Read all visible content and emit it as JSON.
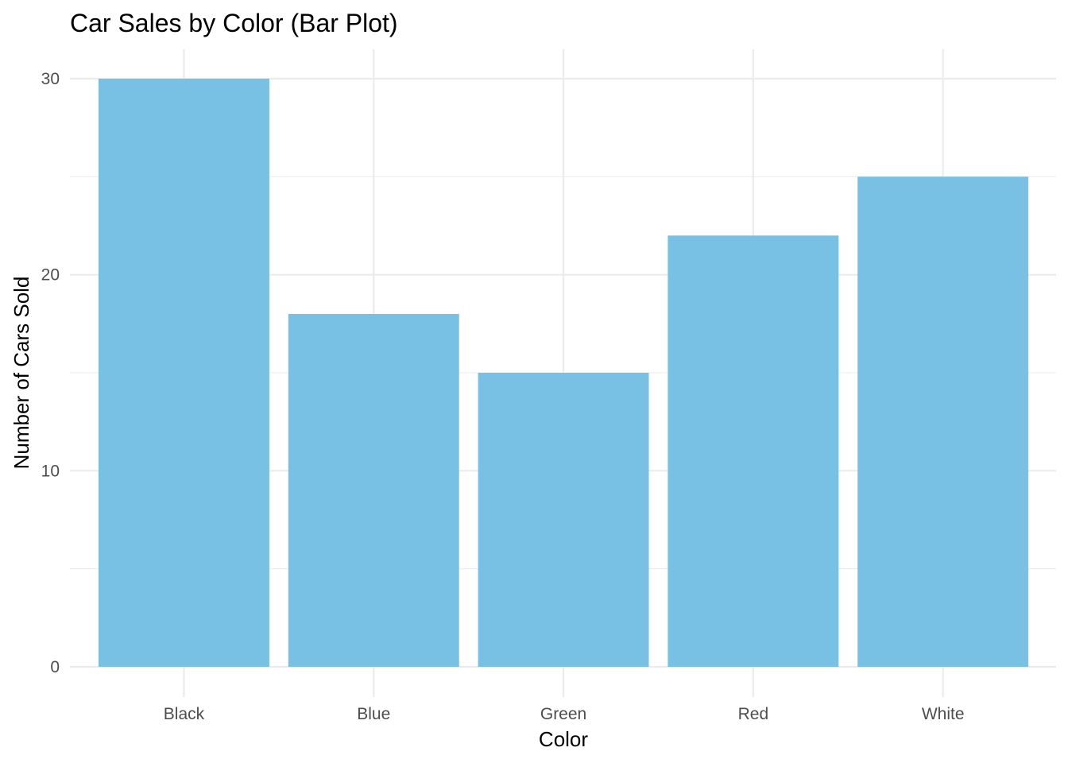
{
  "chart_data": {
    "type": "bar",
    "title": "Car Sales by Color (Bar Plot)",
    "xlabel": "Color",
    "ylabel": "Number of Cars Sold",
    "categories": [
      "Black",
      "Blue",
      "Green",
      "Red",
      "White"
    ],
    "values": [
      30,
      18,
      15,
      22,
      25
    ],
    "yticks": [
      "0",
      "10",
      "20",
      "30"
    ],
    "ylim": [
      0,
      31.5
    ],
    "bar_color": "#78c1e4",
    "grid": true,
    "legend": "none"
  }
}
